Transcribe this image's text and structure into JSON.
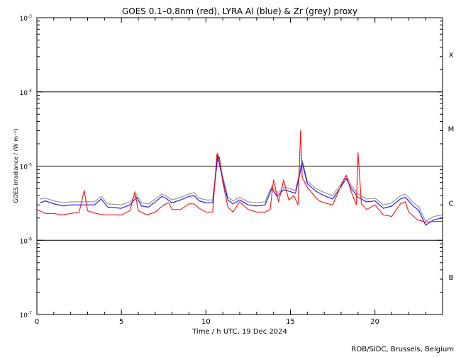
{
  "chart_data": {
    "type": "scatter",
    "title": "GOES 0.1–0.8nm (red), LYRA Al (blue) & Zr (grey) proxy",
    "xlabel": "Time / h UTC, 19 Dec 2024",
    "ylabel": "GOES Irradiance / (W m⁻²)",
    "footer": "ROB/SIDC, Brussels, Belgium",
    "xlim": [
      0,
      24
    ],
    "ylim": [
      1e-07,
      0.001
    ],
    "y_scale": "log",
    "x_ticks": [
      0,
      5,
      10,
      15,
      20
    ],
    "x_tick_labels": [
      "0",
      "5",
      "10",
      "15",
      "20"
    ],
    "y_tick_labels": [
      {
        "value": 0.001,
        "mantissa": "10",
        "exp": "-3"
      },
      {
        "value": 0.0001,
        "mantissa": "10",
        "exp": "-4"
      },
      {
        "value": 1e-05,
        "mantissa": "10",
        "exp": "-5"
      },
      {
        "value": 1e-06,
        "mantissa": "10",
        "exp": "-6"
      },
      {
        "value": 1e-07,
        "mantissa": "10",
        "exp": "-7"
      }
    ],
    "flare_class_lines": [
      0.0001,
      1e-05,
      1e-06
    ],
    "flare_classes": [
      {
        "label": "X",
        "value": 0.00032
      },
      {
        "label": "M",
        "value": 3.2e-05
      },
      {
        "label": "C",
        "value": 3.2e-06
      },
      {
        "label": "B",
        "value": 3.2e-07
      }
    ],
    "series": [
      {
        "color": "#ff0000",
        "points": [
          [
            0.0,
            2.6e-06
          ],
          [
            0.5,
            2.3e-06
          ],
          [
            1.0,
            2.3e-06
          ],
          [
            1.5,
            2.2e-06
          ],
          [
            2.0,
            2.3e-06
          ],
          [
            2.5,
            2.4e-06
          ],
          [
            2.8,
            4.7e-06
          ],
          [
            3.0,
            2.5e-06
          ],
          [
            3.5,
            2.3e-06
          ],
          [
            4.0,
            2.2e-06
          ],
          [
            4.5,
            2.2e-06
          ],
          [
            5.0,
            2.2e-06
          ],
          [
            5.5,
            2.5e-06
          ],
          [
            5.8,
            4.5e-06
          ],
          [
            6.0,
            2.5e-06
          ],
          [
            6.5,
            2.2e-06
          ],
          [
            7.0,
            2.4e-06
          ],
          [
            7.5,
            3e-06
          ],
          [
            7.8,
            3.2e-06
          ],
          [
            8.0,
            2.6e-06
          ],
          [
            8.5,
            2.6e-06
          ],
          [
            9.0,
            3.1e-06
          ],
          [
            9.3,
            3.1e-06
          ],
          [
            9.6,
            2.7e-06
          ],
          [
            10.0,
            2.4e-06
          ],
          [
            10.4,
            2.4e-06
          ],
          [
            10.65,
            1.45e-05
          ],
          [
            10.8,
            1.3e-05
          ],
          [
            11.0,
            6e-06
          ],
          [
            11.3,
            2.8e-06
          ],
          [
            11.6,
            2.4e-06
          ],
          [
            12.0,
            3.3e-06
          ],
          [
            12.5,
            2.6e-06
          ],
          [
            13.0,
            2.4e-06
          ],
          [
            13.5,
            2.4e-06
          ],
          [
            13.8,
            2.6e-06
          ],
          [
            14.0,
            6.5e-06
          ],
          [
            14.3,
            3.3e-06
          ],
          [
            14.6,
            6.5e-06
          ],
          [
            14.9,
            3.5e-06
          ],
          [
            15.2,
            4e-06
          ],
          [
            15.45,
            3e-06
          ],
          [
            15.6,
            3e-05
          ],
          [
            15.7,
            7e-06
          ],
          [
            16.0,
            5.2e-06
          ],
          [
            16.4,
            4e-06
          ],
          [
            16.7,
            3.4e-06
          ],
          [
            17.0,
            3.2e-06
          ],
          [
            17.5,
            3e-06
          ],
          [
            18.0,
            5.5e-06
          ],
          [
            18.3,
            7.5e-06
          ],
          [
            18.6,
            4.5e-06
          ],
          [
            18.9,
            3e-06
          ],
          [
            19.0,
            1.5e-05
          ],
          [
            19.2,
            3.1e-06
          ],
          [
            19.5,
            2.6e-06
          ],
          [
            20.0,
            3e-06
          ],
          [
            20.5,
            2.2e-06
          ],
          [
            21.0,
            2.1e-06
          ],
          [
            21.5,
            3.1e-06
          ],
          [
            21.8,
            3.3e-06
          ],
          [
            22.0,
            2.4e-06
          ],
          [
            22.5,
            1.9e-06
          ],
          [
            23.0,
            1.75e-06
          ],
          [
            23.5,
            1.8e-06
          ],
          [
            24.0,
            1.8e-06
          ]
        ]
      },
      {
        "color": "#0000ff",
        "points": [
          [
            0.2,
            3.2e-06
          ],
          [
            0.5,
            3.4e-06
          ],
          [
            1.0,
            3.1e-06
          ],
          [
            1.6,
            2.9e-06
          ],
          [
            2.0,
            3e-06
          ],
          [
            2.6,
            3e-06
          ],
          [
            3.4,
            3e-06
          ],
          [
            3.8,
            3.6e-06
          ],
          [
            4.2,
            2.8e-06
          ],
          [
            5.0,
            2.7e-06
          ],
          [
            5.5,
            3e-06
          ],
          [
            5.9,
            3.8e-06
          ],
          [
            6.2,
            2.9e-06
          ],
          [
            6.6,
            2.8e-06
          ],
          [
            7.0,
            3.3e-06
          ],
          [
            7.4,
            3.9e-06
          ],
          [
            7.7,
            3.6e-06
          ],
          [
            8.0,
            3.2e-06
          ],
          [
            8.5,
            3.5e-06
          ],
          [
            9.0,
            3.9e-06
          ],
          [
            9.3,
            4e-06
          ],
          [
            9.6,
            3.4e-06
          ],
          [
            10.0,
            3.2e-06
          ],
          [
            10.4,
            3.2e-06
          ],
          [
            10.7,
            1.35e-05
          ],
          [
            11.0,
            6.5e-06
          ],
          [
            11.3,
            3.5e-06
          ],
          [
            11.6,
            3.1e-06
          ],
          [
            12.0,
            3.5e-06
          ],
          [
            12.5,
            3e-06
          ],
          [
            13.0,
            2.9e-06
          ],
          [
            13.5,
            3e-06
          ],
          [
            13.9,
            5e-06
          ],
          [
            14.2,
            3.9e-06
          ],
          [
            14.6,
            4.8e-06
          ],
          [
            14.9,
            4.6e-06
          ],
          [
            15.3,
            4.3e-06
          ],
          [
            15.7,
            1.1e-05
          ],
          [
            16.0,
            5.8e-06
          ],
          [
            16.5,
            4.6e-06
          ],
          [
            17.0,
            4e-06
          ],
          [
            17.5,
            3.6e-06
          ],
          [
            18.0,
            5.3e-06
          ],
          [
            18.3,
            6.8e-06
          ],
          [
            18.6,
            5e-06
          ],
          [
            19.0,
            3.8e-06
          ],
          [
            19.5,
            3.3e-06
          ],
          [
            20.0,
            3.4e-06
          ],
          [
            20.5,
            2.7e-06
          ],
          [
            21.0,
            2.9e-06
          ],
          [
            21.5,
            3.6e-06
          ],
          [
            21.8,
            3.8e-06
          ],
          [
            22.2,
            3e-06
          ],
          [
            22.6,
            2.5e-06
          ],
          [
            23.0,
            1.6e-06
          ],
          [
            23.5,
            1.9e-06
          ],
          [
            24.0,
            2e-06
          ]
        ]
      },
      {
        "color": "#888888",
        "points": [
          [
            0.2,
            3.6e-06
          ],
          [
            0.5,
            3.7e-06
          ],
          [
            1.0,
            3.4e-06
          ],
          [
            1.6,
            3.2e-06
          ],
          [
            2.0,
            3.3e-06
          ],
          [
            2.6,
            3.3e-06
          ],
          [
            3.4,
            3.3e-06
          ],
          [
            3.8,
            3.9e-06
          ],
          [
            4.2,
            3.1e-06
          ],
          [
            5.0,
            3e-06
          ],
          [
            5.5,
            3.3e-06
          ],
          [
            5.9,
            4.1e-06
          ],
          [
            6.2,
            3.2e-06
          ],
          [
            6.6,
            3.1e-06
          ],
          [
            7.0,
            3.6e-06
          ],
          [
            7.4,
            4.2e-06
          ],
          [
            7.7,
            3.9e-06
          ],
          [
            8.0,
            3.5e-06
          ],
          [
            8.5,
            3.8e-06
          ],
          [
            9.0,
            4.2e-06
          ],
          [
            9.3,
            4.4e-06
          ],
          [
            9.6,
            3.7e-06
          ],
          [
            10.0,
            3.5e-06
          ],
          [
            10.4,
            3.5e-06
          ],
          [
            10.7,
            1.5e-05
          ],
          [
            11.0,
            7.2e-06
          ],
          [
            11.3,
            3.8e-06
          ],
          [
            11.6,
            3.4e-06
          ],
          [
            12.0,
            3.8e-06
          ],
          [
            12.5,
            3.3e-06
          ],
          [
            13.0,
            3.2e-06
          ],
          [
            13.5,
            3.3e-06
          ],
          [
            13.9,
            5.4e-06
          ],
          [
            14.2,
            4.2e-06
          ],
          [
            14.6,
            5.2e-06
          ],
          [
            14.9,
            5e-06
          ],
          [
            15.3,
            4.7e-06
          ],
          [
            15.7,
            1.2e-05
          ],
          [
            16.0,
            6.3e-06
          ],
          [
            16.5,
            5e-06
          ],
          [
            17.0,
            4.4e-06
          ],
          [
            17.5,
            4e-06
          ],
          [
            18.0,
            5.8e-06
          ],
          [
            18.3,
            7.5e-06
          ],
          [
            18.6,
            5.5e-06
          ],
          [
            19.0,
            4.2e-06
          ],
          [
            19.5,
            3.6e-06
          ],
          [
            20.0,
            3.7e-06
          ],
          [
            20.5,
            3e-06
          ],
          [
            21.0,
            3.2e-06
          ],
          [
            21.5,
            4e-06
          ],
          [
            21.8,
            4.2e-06
          ],
          [
            22.2,
            3.3e-06
          ],
          [
            22.6,
            2.8e-06
          ],
          [
            23.0,
            1.8e-06
          ],
          [
            23.5,
            2.1e-06
          ],
          [
            24.0,
            2.2e-06
          ]
        ]
      }
    ]
  }
}
